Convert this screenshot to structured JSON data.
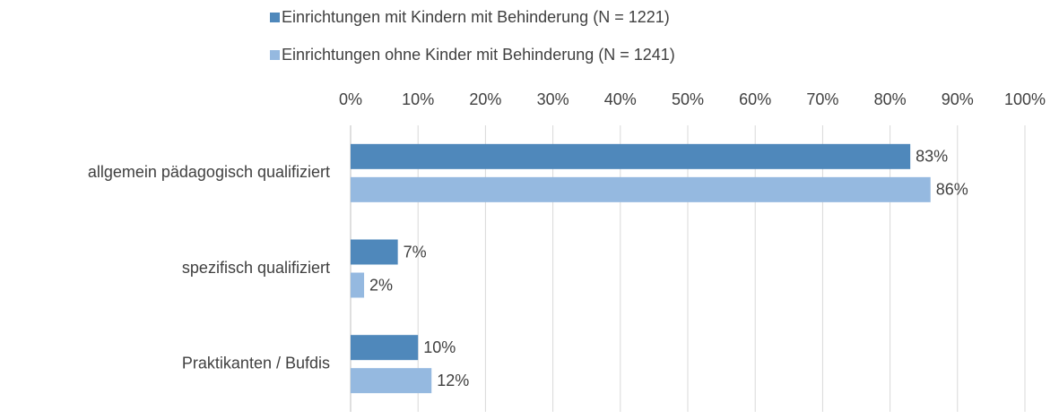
{
  "chart_data": {
    "type": "hbar",
    "categories": [
      "allgemein pädagogisch qualifiziert",
      "spezifisch qualifiziert",
      "Praktikanten / Bufdis"
    ],
    "series": [
      {
        "name": "Einrichtungen mit Kindern mit Behinderung (N = 1221)",
        "color": "#4f88bb",
        "values": [
          83,
          7,
          10
        ],
        "value_labels": [
          "83%",
          "7%",
          "10%"
        ]
      },
      {
        "name": "Einrichtungen ohne Kinder mit Behinderung (N = 1241)",
        "color": "#95b9e0",
        "values": [
          86,
          2,
          12
        ],
        "value_labels": [
          "86%",
          "2%",
          "12%"
        ]
      }
    ],
    "xlim": [
      0,
      100
    ],
    "xticks": [
      {
        "value": 0,
        "label": "0%"
      },
      {
        "value": 10,
        "label": "10%"
      },
      {
        "value": 20,
        "label": "20%"
      },
      {
        "value": 30,
        "label": "30%"
      },
      {
        "value": 40,
        "label": "40%"
      },
      {
        "value": 50,
        "label": "50%"
      },
      {
        "value": 60,
        "label": "60%"
      },
      {
        "value": 70,
        "label": "70%"
      },
      {
        "value": 80,
        "label": "80%"
      },
      {
        "value": 90,
        "label": "90%"
      },
      {
        "value": 100,
        "label": "100%"
      }
    ],
    "grid": true,
    "legend": "top"
  }
}
